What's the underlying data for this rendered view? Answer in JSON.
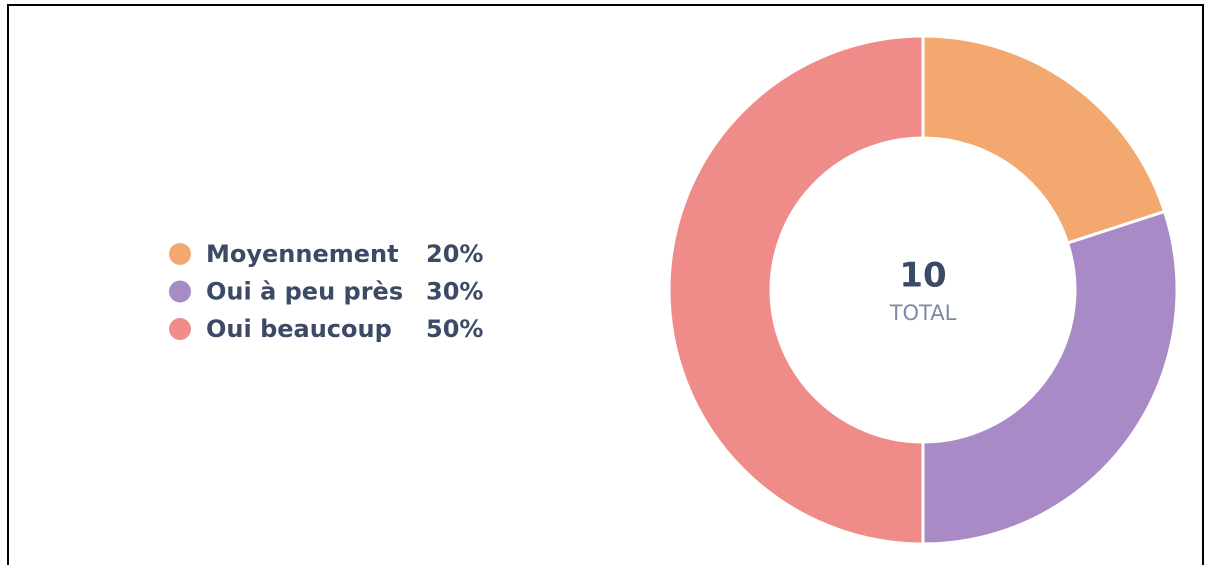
{
  "chart_data": {
    "type": "pie",
    "donut": true,
    "categories": [
      "Moyennement",
      "Oui à peu près",
      "Oui beaucoup"
    ],
    "values": [
      20,
      30,
      50
    ],
    "value_labels": [
      "20%",
      "30%",
      "50%"
    ],
    "colors": [
      "#f3a870",
      "#a88ac6",
      "#ef8c8a"
    ],
    "total": 10,
    "total_label": "TOTAL",
    "legend": "left"
  }
}
